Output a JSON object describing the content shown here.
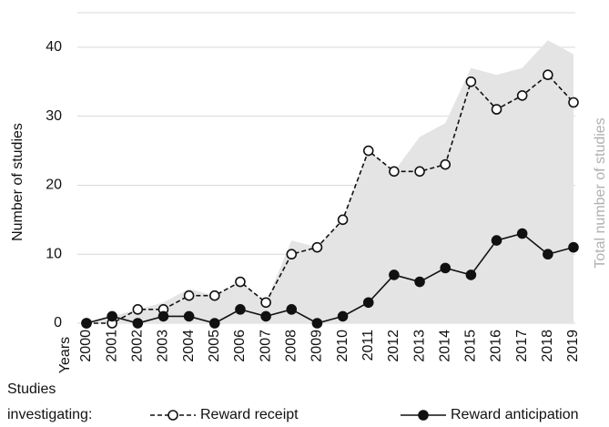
{
  "chart_data": {
    "type": "line",
    "x_label": "Years",
    "y_label": "Number of studies",
    "y2_label_series": 0,
    "categories": [
      "2000",
      "2001",
      "2002",
      "2003",
      "2004",
      "2005",
      "2006",
      "2007",
      "2008",
      "2009",
      "2010",
      "2011",
      "2012",
      "2013",
      "2014",
      "2015",
      "2016",
      "2017",
      "2018",
      "2019"
    ],
    "series": [
      {
        "name": "Total number of studies",
        "kind": "area",
        "color": "#e4e4e4",
        "values": [
          0,
          1,
          2,
          3,
          5,
          4,
          6,
          3,
          12,
          11,
          15,
          25,
          22,
          27,
          29,
          37,
          36,
          37,
          41,
          39
        ]
      },
      {
        "name": "Reward receipt",
        "kind": "line",
        "dashed": true,
        "marker": "open",
        "color": "#111111",
        "values": [
          0,
          0,
          2,
          2,
          4,
          4,
          6,
          3,
          10,
          11,
          15,
          25,
          22,
          22,
          23,
          35,
          31,
          33,
          36,
          32
        ]
      },
      {
        "name": "Reward anticipation",
        "kind": "line",
        "dashed": false,
        "marker": "filled",
        "color": "#111111",
        "values": [
          0,
          1,
          0,
          1,
          1,
          0,
          2,
          1,
          2,
          0,
          1,
          3,
          7,
          6,
          8,
          7,
          12,
          13,
          10,
          11
        ]
      }
    ],
    "legend_title": [
      "Studies",
      "investigating:"
    ],
    "ylim": [
      0,
      45
    ],
    "yticks": [
      0,
      10,
      20,
      30,
      40
    ],
    "grid": true
  }
}
